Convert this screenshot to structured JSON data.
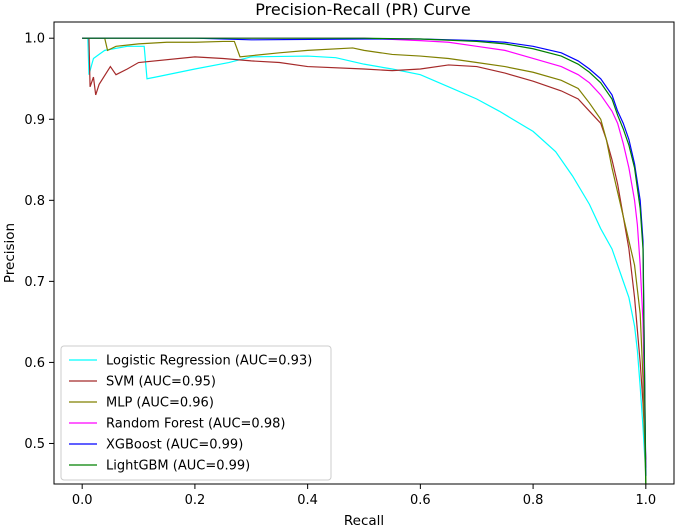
{
  "chart_data": {
    "type": "line",
    "title": "Precision-Recall (PR) Curve",
    "xlabel": "Recall",
    "ylabel": "Precision",
    "xlim": [
      -0.05,
      1.05
    ],
    "ylim": [
      0.45,
      1.02
    ],
    "xticks": [
      0.0,
      0.2,
      0.4,
      0.6,
      0.8,
      1.0
    ],
    "xtick_labels": [
      "0.0",
      "0.2",
      "0.4",
      "0.6",
      "0.8",
      "1.0"
    ],
    "yticks": [
      0.5,
      0.6,
      0.7,
      0.8,
      0.9,
      1.0
    ],
    "ytick_labels": [
      "0.5",
      "0.6",
      "0.7",
      "0.8",
      "0.9",
      "1.0"
    ],
    "grid": false,
    "legend_position": "lower-left",
    "series": [
      {
        "name": "Logistic Regression (AUC=0.93)",
        "color": "#00ffff",
        "points": [
          [
            0.0,
            1.0
          ],
          [
            0.01,
            1.0
          ],
          [
            0.012,
            0.955
          ],
          [
            0.02,
            0.975
          ],
          [
            0.03,
            0.98
          ],
          [
            0.04,
            0.985
          ],
          [
            0.08,
            0.99
          ],
          [
            0.11,
            0.99
          ],
          [
            0.115,
            0.95
          ],
          [
            0.13,
            0.952
          ],
          [
            0.2,
            0.962
          ],
          [
            0.26,
            0.97
          ],
          [
            0.3,
            0.977
          ],
          [
            0.4,
            0.978
          ],
          [
            0.45,
            0.976
          ],
          [
            0.5,
            0.968
          ],
          [
            0.55,
            0.962
          ],
          [
            0.6,
            0.955
          ],
          [
            0.65,
            0.94
          ],
          [
            0.7,
            0.925
          ],
          [
            0.74,
            0.91
          ],
          [
            0.8,
            0.885
          ],
          [
            0.84,
            0.86
          ],
          [
            0.87,
            0.83
          ],
          [
            0.9,
            0.795
          ],
          [
            0.92,
            0.765
          ],
          [
            0.94,
            0.74
          ],
          [
            0.95,
            0.72
          ],
          [
            0.96,
            0.7
          ],
          [
            0.97,
            0.68
          ],
          [
            0.98,
            0.645
          ],
          [
            0.985,
            0.615
          ],
          [
            0.99,
            0.57
          ],
          [
            0.995,
            0.52
          ],
          [
            1.0,
            0.46
          ]
        ]
      },
      {
        "name": "SVM (AUC=0.95)",
        "color": "#a52a2a",
        "points": [
          [
            0.0,
            1.0
          ],
          [
            0.012,
            1.0
          ],
          [
            0.014,
            0.94
          ],
          [
            0.02,
            0.952
          ],
          [
            0.024,
            0.93
          ],
          [
            0.03,
            0.943
          ],
          [
            0.05,
            0.965
          ],
          [
            0.06,
            0.955
          ],
          [
            0.08,
            0.962
          ],
          [
            0.1,
            0.97
          ],
          [
            0.2,
            0.977
          ],
          [
            0.25,
            0.975
          ],
          [
            0.3,
            0.972
          ],
          [
            0.35,
            0.97
          ],
          [
            0.4,
            0.965
          ],
          [
            0.5,
            0.962
          ],
          [
            0.55,
            0.96
          ],
          [
            0.6,
            0.962
          ],
          [
            0.65,
            0.967
          ],
          [
            0.7,
            0.965
          ],
          [
            0.75,
            0.957
          ],
          [
            0.8,
            0.947
          ],
          [
            0.85,
            0.935
          ],
          [
            0.88,
            0.925
          ],
          [
            0.9,
            0.91
          ],
          [
            0.92,
            0.895
          ],
          [
            0.93,
            0.875
          ],
          [
            0.94,
            0.85
          ],
          [
            0.95,
            0.82
          ],
          [
            0.96,
            0.78
          ],
          [
            0.97,
            0.74
          ],
          [
            0.98,
            0.68
          ],
          [
            0.99,
            0.6
          ],
          [
            0.995,
            0.55
          ],
          [
            1.0,
            0.48
          ]
        ]
      },
      {
        "name": "MLP (AUC=0.96)",
        "color": "#808000",
        "points": [
          [
            0.0,
            1.0
          ],
          [
            0.04,
            1.0
          ],
          [
            0.045,
            0.985
          ],
          [
            0.06,
            0.99
          ],
          [
            0.1,
            0.993
          ],
          [
            0.15,
            0.995
          ],
          [
            0.2,
            0.995
          ],
          [
            0.25,
            0.996
          ],
          [
            0.27,
            0.996
          ],
          [
            0.28,
            0.977
          ],
          [
            0.35,
            0.982
          ],
          [
            0.4,
            0.985
          ],
          [
            0.48,
            0.988
          ],
          [
            0.5,
            0.985
          ],
          [
            0.55,
            0.98
          ],
          [
            0.6,
            0.978
          ],
          [
            0.65,
            0.975
          ],
          [
            0.7,
            0.97
          ],
          [
            0.75,
            0.965
          ],
          [
            0.8,
            0.958
          ],
          [
            0.85,
            0.948
          ],
          [
            0.88,
            0.938
          ],
          [
            0.9,
            0.92
          ],
          [
            0.92,
            0.9
          ],
          [
            0.93,
            0.875
          ],
          [
            0.94,
            0.84
          ],
          [
            0.95,
            0.81
          ],
          [
            0.96,
            0.78
          ],
          [
            0.97,
            0.75
          ],
          [
            0.98,
            0.72
          ],
          [
            0.99,
            0.66
          ],
          [
            0.995,
            0.58
          ],
          [
            1.0,
            0.45
          ]
        ]
      },
      {
        "name": "Random Forest (AUC=0.98)",
        "color": "#ff00ff",
        "points": [
          [
            0.0,
            1.0
          ],
          [
            0.3,
            1.0
          ],
          [
            0.5,
            1.0
          ],
          [
            0.6,
            0.997
          ],
          [
            0.65,
            0.995
          ],
          [
            0.7,
            0.99
          ],
          [
            0.75,
            0.985
          ],
          [
            0.8,
            0.975
          ],
          [
            0.85,
            0.965
          ],
          [
            0.88,
            0.955
          ],
          [
            0.9,
            0.945
          ],
          [
            0.92,
            0.93
          ],
          [
            0.94,
            0.91
          ],
          [
            0.95,
            0.895
          ],
          [
            0.96,
            0.87
          ],
          [
            0.97,
            0.84
          ],
          [
            0.98,
            0.8
          ],
          [
            0.985,
            0.77
          ],
          [
            0.99,
            0.72
          ],
          [
            0.995,
            0.65
          ],
          [
            1.0,
            0.47
          ]
        ]
      },
      {
        "name": "XGBoost (AUC=0.99)",
        "color": "#0000ff",
        "points": [
          [
            0.0,
            1.0
          ],
          [
            0.2,
            1.0
          ],
          [
            0.3,
            0.998
          ],
          [
            0.5,
            0.999
          ],
          [
            0.6,
            0.999
          ],
          [
            0.7,
            0.997
          ],
          [
            0.75,
            0.995
          ],
          [
            0.8,
            0.99
          ],
          [
            0.85,
            0.982
          ],
          [
            0.88,
            0.972
          ],
          [
            0.9,
            0.962
          ],
          [
            0.92,
            0.95
          ],
          [
            0.94,
            0.93
          ],
          [
            0.95,
            0.91
          ],
          [
            0.96,
            0.895
          ],
          [
            0.97,
            0.875
          ],
          [
            0.98,
            0.845
          ],
          [
            0.99,
            0.8
          ],
          [
            0.995,
            0.75
          ],
          [
            1.0,
            0.46
          ]
        ]
      },
      {
        "name": "LightGBM (AUC=0.99)",
        "color": "#008000",
        "points": [
          [
            0.0,
            1.0
          ],
          [
            0.5,
            1.0
          ],
          [
            0.6,
            0.999
          ],
          [
            0.7,
            0.996
          ],
          [
            0.75,
            0.993
          ],
          [
            0.8,
            0.987
          ],
          [
            0.85,
            0.978
          ],
          [
            0.88,
            0.968
          ],
          [
            0.9,
            0.958
          ],
          [
            0.92,
            0.945
          ],
          [
            0.94,
            0.925
          ],
          [
            0.95,
            0.905
          ],
          [
            0.96,
            0.888
          ],
          [
            0.97,
            0.868
          ],
          [
            0.98,
            0.84
          ],
          [
            0.99,
            0.79
          ],
          [
            0.995,
            0.74
          ],
          [
            1.0,
            0.45
          ]
        ]
      }
    ]
  }
}
